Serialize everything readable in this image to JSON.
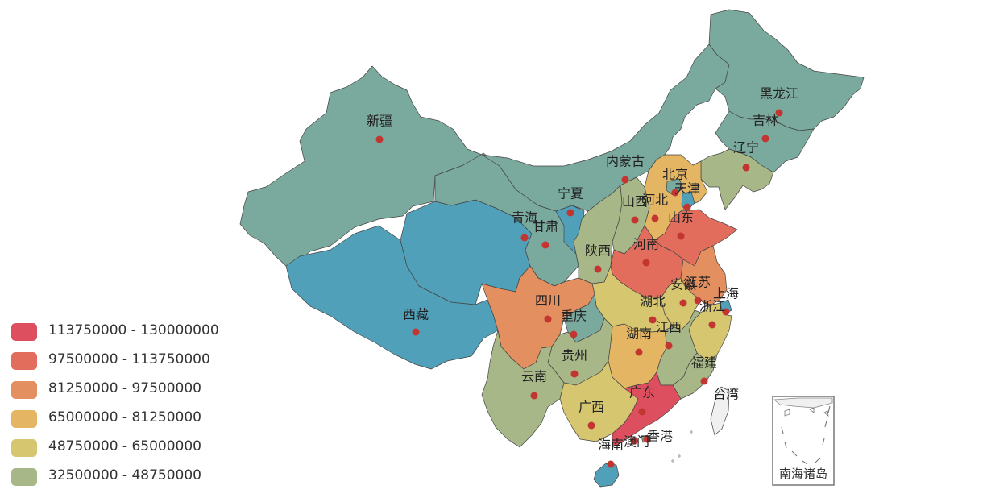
{
  "map": {
    "colors": {
      "c1": "#dd4f5f",
      "c2": "#e36d5c",
      "c3": "#e38f5f",
      "c4": "#e4b664",
      "c5": "#d6c670",
      "c6": "#a8b787",
      "c7": "#7aa99d",
      "c8": "#51a0ba",
      "none": "#f0f0f0",
      "border": "#444444",
      "marker": "#c23531"
    },
    "legend": [
      {
        "label": "113750000 - 130000000",
        "color": "#dd4f5f"
      },
      {
        "label": "97500000 - 113750000",
        "color": "#e36d5c"
      },
      {
        "label": "81250000 - 97500000",
        "color": "#e38f5f"
      },
      {
        "label": "65000000 - 81250000",
        "color": "#e4b664"
      },
      {
        "label": "48750000 - 65000000",
        "color": "#d6c670"
      },
      {
        "label": "32500000 - 48750000",
        "color": "#a8b787"
      }
    ],
    "regions": [
      {
        "id": "xinjiang",
        "name": "新疆",
        "color": "#7aa99d"
      },
      {
        "id": "xizang",
        "name": "西藏",
        "color": "#51a0ba"
      },
      {
        "id": "qinghai",
        "name": "青海",
        "color": "#51a0ba"
      },
      {
        "id": "gansu",
        "name": "甘肃",
        "color": "#7aa99d"
      },
      {
        "id": "neimenggu",
        "name": "内蒙古",
        "color": "#7aa99d"
      },
      {
        "id": "heilongjiang",
        "name": "黑龙江",
        "color": "#7aa99d"
      },
      {
        "id": "jilin",
        "name": "吉林",
        "color": "#7aa99d"
      },
      {
        "id": "liaoning",
        "name": "辽宁",
        "color": "#a8b787"
      },
      {
        "id": "ningxia",
        "name": "宁夏",
        "color": "#51a0ba"
      },
      {
        "id": "shaanxi",
        "name": "陕西",
        "color": "#a8b787"
      },
      {
        "id": "shanxi",
        "name": "山西",
        "color": "#a8b787"
      },
      {
        "id": "hebei",
        "name": "河北",
        "color": "#e4b664"
      },
      {
        "id": "beijing",
        "name": "北京",
        "color": "#7aa99d"
      },
      {
        "id": "tianjin",
        "name": "天津",
        "color": "#51a0ba"
      },
      {
        "id": "shandong",
        "name": "山东",
        "color": "#e36d5c"
      },
      {
        "id": "henan",
        "name": "河南",
        "color": "#e36d5c"
      },
      {
        "id": "jiangsu",
        "name": "江苏",
        "color": "#e38f5f"
      },
      {
        "id": "anhui",
        "name": "安徽",
        "color": "#d6c670"
      },
      {
        "id": "shanghai",
        "name": "上海",
        "color": "#51a0ba"
      },
      {
        "id": "zhejiang",
        "name": "浙江",
        "color": "#d6c670"
      },
      {
        "id": "hubei",
        "name": "湖北",
        "color": "#d6c670"
      },
      {
        "id": "sichuan",
        "name": "四川",
        "color": "#e38f5f"
      },
      {
        "id": "chongqing",
        "name": "重庆",
        "color": "#7aa99d"
      },
      {
        "id": "hunan",
        "name": "湖南",
        "color": "#e4b664"
      },
      {
        "id": "jiangxi",
        "name": "江西",
        "color": "#a8b787"
      },
      {
        "id": "fujian",
        "name": "福建",
        "color": "#a8b787"
      },
      {
        "id": "guizhou",
        "name": "贵州",
        "color": "#a8b787"
      },
      {
        "id": "yunnan",
        "name": "云南",
        "color": "#a8b787"
      },
      {
        "id": "guangxi",
        "name": "广西",
        "color": "#d6c670"
      },
      {
        "id": "guangdong",
        "name": "广东",
        "color": "#dd4f5f"
      },
      {
        "id": "hainan",
        "name": "海南",
        "color": "#51a0ba"
      },
      {
        "id": "xianggang",
        "name": "香港",
        "color": "#7aa99d"
      },
      {
        "id": "aomen",
        "name": "澳门",
        "color": "#7aa99d"
      },
      {
        "id": "taiwan",
        "name": "台湾",
        "color": "#f0f0f0"
      }
    ],
    "inset": {
      "label": "南海诸岛"
    }
  }
}
